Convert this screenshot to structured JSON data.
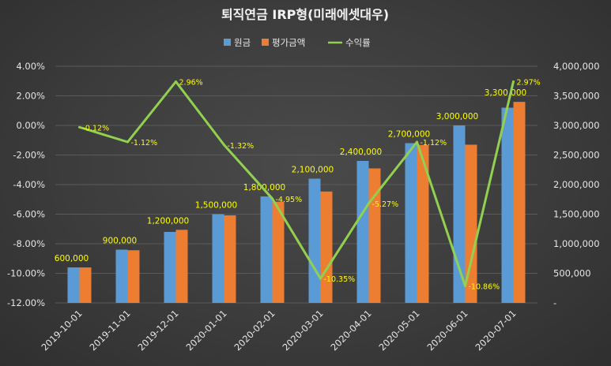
{
  "chart_data": {
    "type": "bar+line",
    "title": "퇴직연금 IRP형(미래에셋대우)",
    "categories": [
      "2019-10-01",
      "2019-11-01",
      "2019-12-01",
      "2020-01-01",
      "2020-02-01",
      "2020-03-01",
      "2020-04-01",
      "2020-05-01",
      "2020-06-01",
      "2020-07-01"
    ],
    "series": [
      {
        "name": "원금",
        "axis": "right",
        "kind": "bar",
        "color": "#5b9bd5",
        "values": [
          600000,
          900000,
          1200000,
          1500000,
          1800000,
          2100000,
          2400000,
          2700000,
          3000000,
          3300000
        ],
        "labels": [
          "600,000",
          "900,000",
          "1,200,000",
          "1,500,000",
          "1,800,000",
          "2,100,000",
          "2,400,000",
          "2,700,000",
          "3,000,000",
          "3,300,000"
        ]
      },
      {
        "name": "평가금액",
        "axis": "right",
        "kind": "bar",
        "color": "#ed7d31",
        "values": [
          599280,
          889920,
          1235520,
          1480200,
          1710900,
          1882650,
          2273520,
          2669760,
          2674200,
          3398010
        ]
      },
      {
        "name": "수익률",
        "axis": "left",
        "kind": "line",
        "color": "#92d050",
        "values": [
          -0.12,
          -1.12,
          2.96,
          -1.32,
          -4.95,
          -10.35,
          -5.27,
          -1.12,
          -10.86,
          2.97
        ],
        "labels": [
          "-0.12%",
          "-1.12%",
          "2.96%",
          "-1.32%",
          "-4.95%",
          "-10.35%",
          "-5.27%",
          "-1.12%",
          "-10.86%",
          "2.97%"
        ]
      }
    ],
    "y_left": {
      "min": -12,
      "max": 4,
      "step": 2,
      "tick_labels": [
        "-12.00%",
        "-10.00%",
        "-8.00%",
        "-6.00%",
        "-4.00%",
        "-2.00%",
        "0.00%",
        "2.00%",
        "4.00%"
      ]
    },
    "y_right": {
      "min": 0,
      "max": 4000000,
      "step": 500000,
      "tick_labels": [
        "-",
        "500,000",
        "1,000,000",
        "1,500,000",
        "2,000,000",
        "2,500,000",
        "3,000,000",
        "3,500,000",
        "4,000,000"
      ]
    },
    "grid": true,
    "legend": "top-center"
  }
}
